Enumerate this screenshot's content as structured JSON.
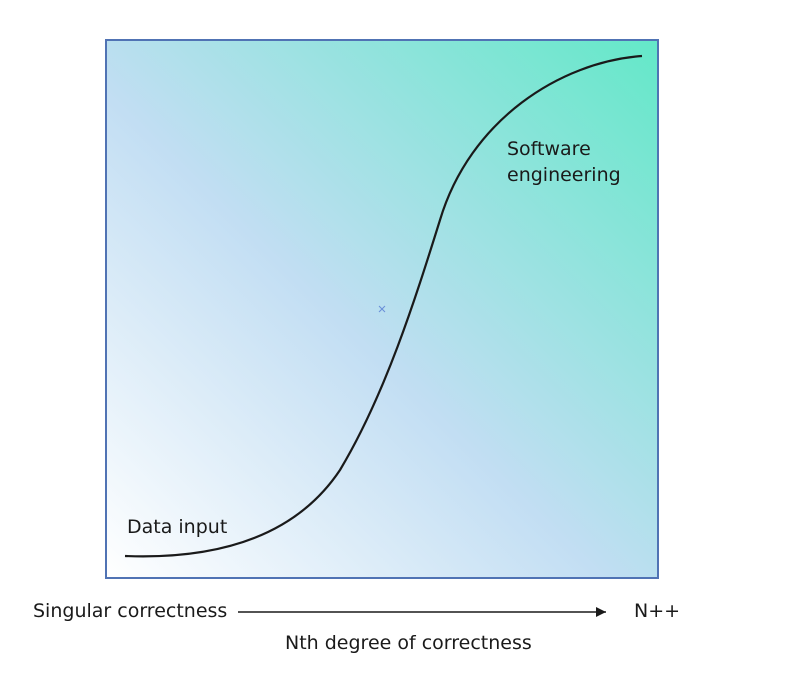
{
  "diagram": {
    "gradient": {
      "from": "#ffffff",
      "mid": "#c2def3",
      "to": "#63e8c8"
    },
    "frame_color": "#5073b4",
    "curve_color": "#1a1a1a",
    "arrow_color": "#1a1a1a",
    "center_marker_color": "#6a8fd8"
  },
  "labels": {
    "software_engineering": "Software engineering",
    "data_input": "Data input"
  },
  "axis": {
    "left_label": "Singular correctness",
    "right_label": "N++",
    "caption": "Nth degree of correctness"
  }
}
